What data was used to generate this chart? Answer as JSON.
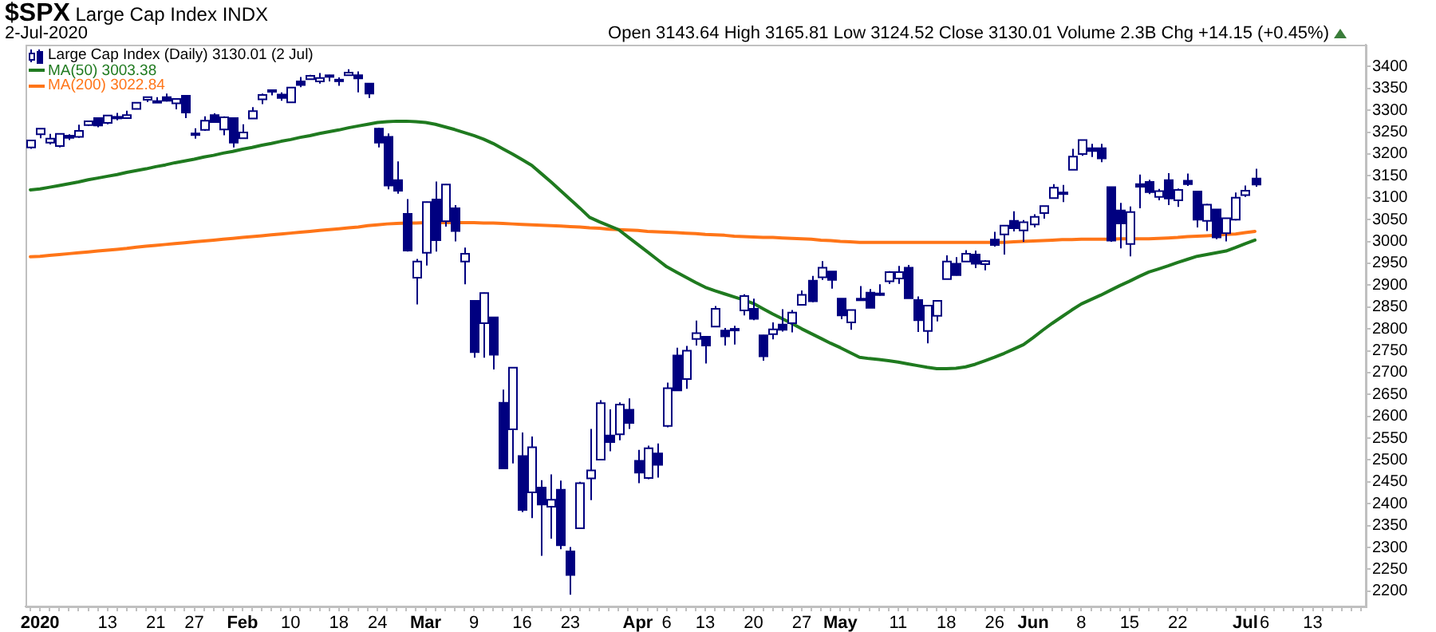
{
  "chart_data": {
    "type": "candlestick",
    "title": "$SPX Large Cap Index INDX",
    "subtitle": "2-Jul-2020",
    "annotations": [
      "Open 3143.64 High 3165.81 Low 3124.52 Close 3130.01 Volume 2.3B Chg +14.15 (+0.45%)"
    ],
    "categories": [
      null,
      "2020",
      null,
      null,
      null,
      null,
      null,
      null,
      "13",
      null,
      null,
      null,
      null,
      "21",
      null,
      null,
      null,
      "27",
      null,
      null,
      null,
      null,
      "Feb",
      null,
      null,
      null,
      null,
      "10",
      null,
      null,
      null,
      null,
      "18",
      null,
      null,
      null,
      "24",
      null,
      null,
      null,
      null,
      "Mar",
      null,
      null,
      null,
      null,
      "9",
      null,
      null,
      null,
      null,
      "16",
      null,
      null,
      null,
      null,
      "23",
      null,
      null,
      null,
      null,
      null,
      null,
      "Apr",
      null,
      null,
      "6",
      null,
      null,
      null,
      "13",
      null,
      null,
      null,
      null,
      "20",
      null,
      null,
      null,
      null,
      "27",
      null,
      null,
      null,
      "May",
      null,
      null,
      null,
      null,
      null,
      "11",
      null,
      null,
      null,
      null,
      "18",
      null,
      null,
      null,
      null,
      "26",
      null,
      null,
      null,
      "Jun",
      null,
      null,
      null,
      null,
      "8",
      null,
      null,
      null,
      null,
      "15",
      null,
      null,
      null,
      null,
      "22",
      null,
      null,
      null,
      null,
      null,
      null,
      "Jul",
      null,
      "6",
      null,
      null,
      null,
      null,
      "13",
      null,
      null,
      null,
      null,
      null
    ],
    "ylim": [
      2165,
      3450
    ],
    "yticks": [
      2200,
      2250,
      2300,
      2350,
      2400,
      2450,
      2500,
      2550,
      2600,
      2650,
      2700,
      2750,
      2800,
      2850,
      2900,
      2950,
      3000,
      3050,
      3100,
      3150,
      3200,
      3250,
      3300,
      3350,
      3400
    ],
    "grid": false,
    "legend": "top left",
    "marker": "none",
    "line_style": "solid",
    "series": [
      {
        "type": "line",
        "name": "MA(50) 3003.38",
        "color": "#1f7a1f",
        "values": [
          3118,
          3120,
          3124,
          3128,
          3132,
          3136,
          3141,
          3145,
          3149,
          3153,
          3158,
          3162,
          3166,
          3171,
          3175,
          3180,
          3184,
          3188,
          3193,
          3197,
          3202,
          3206,
          3211,
          3215,
          3220,
          3224,
          3229,
          3233,
          3238,
          3242,
          3247,
          3251,
          3255,
          3260,
          3264,
          3268,
          3272,
          3274,
          3275,
          3275,
          3274,
          3272,
          3268,
          3262,
          3256,
          3249,
          3242,
          3234,
          3224,
          3212,
          3200,
          3187,
          3174,
          3155,
          3136,
          3116,
          3096,
          3076,
          3055,
          3045,
          3036,
          3027,
          3010,
          2993,
          2976,
          2959,
          2942,
          2930,
          2918,
          2906,
          2895,
          2887,
          2880,
          2873,
          2866,
          2858,
          2846,
          2834,
          2823,
          2812,
          2800,
          2789,
          2778,
          2767,
          2757,
          2746,
          2735,
          2732,
          2730,
          2727,
          2724,
          2720,
          2716,
          2712,
          2709,
          2709,
          2710,
          2713,
          2719,
          2727,
          2735,
          2744,
          2754,
          2764,
          2780,
          2797,
          2813,
          2828,
          2843,
          2857,
          2867,
          2877,
          2888,
          2899,
          2909,
          2920,
          2930,
          2937,
          2944,
          2952,
          2959,
          2966,
          2970,
          2974,
          2978,
          2986,
          2995,
          3003,
          null,
          null,
          null,
          null,
          null,
          null,
          null,
          null,
          null,
          null,
          null
        ]
      },
      {
        "type": "line",
        "name": "MA(200) 3022.84",
        "color": "#ff7518",
        "values": [
          2965,
          2966,
          2968,
          2970,
          2972,
          2974,
          2976,
          2978,
          2980,
          2982,
          2984,
          2987,
          2989,
          2991,
          2993,
          2995,
          2997,
          2999,
          3001,
          3003,
          3005,
          3007,
          3009,
          3011,
          3013,
          3015,
          3017,
          3019,
          3021,
          3023,
          3025,
          3027,
          3029,
          3031,
          3033,
          3036,
          3038,
          3040,
          3041,
          3042,
          3042,
          3043,
          3043,
          3043,
          3043,
          3043,
          3043,
          3042,
          3042,
          3041,
          3040,
          3039,
          3038,
          3037,
          3036,
          3035,
          3034,
          3033,
          3031,
          3030,
          3028,
          3027,
          3026,
          3025,
          3023,
          3022,
          3021,
          3020,
          3019,
          3018,
          3016,
          3015,
          3014,
          3012,
          3011,
          3010,
          3009,
          3009,
          3008,
          3007,
          3006,
          3005,
          3003,
          3002,
          3000,
          2999,
          2998,
          2998,
          2998,
          2998,
          2998,
          2998,
          2998,
          2998,
          2998,
          2998,
          2998,
          2998,
          2998,
          2998,
          2998,
          2998,
          2999,
          3000,
          3001,
          3002,
          3003,
          3004,
          3004,
          3005,
          3005,
          3005,
          3005,
          3006,
          3006,
          3006,
          3006,
          3007,
          3008,
          3009,
          3011,
          3012,
          3013,
          3014,
          3016,
          3017,
          3020,
          3023,
          null,
          null,
          null,
          null,
          null,
          null,
          null,
          null,
          null,
          null,
          null
        ]
      },
      {
        "name": "Large Cap Index (Daily) 3130.01 (2 Jul)",
        "color": "#000080",
        "ohlc": [
          [
            3215,
            3232,
            3212,
            3231
          ],
          [
            3245,
            3258,
            3236,
            3258
          ],
          [
            3226,
            3246,
            3222,
            3235
          ],
          [
            3218,
            3247,
            3215,
            3246
          ],
          [
            3242,
            3245,
            3232,
            3237
          ],
          [
            3239,
            3267,
            3237,
            3253
          ],
          [
            3266,
            3276,
            3264,
            3275
          ],
          [
            3282,
            3283,
            3261,
            3265
          ],
          [
            3271,
            3288,
            3268,
            3288
          ],
          [
            3285,
            3294,
            3277,
            3283
          ],
          [
            3282,
            3299,
            3281,
            3289
          ],
          [
            3303,
            3317,
            3303,
            3317
          ],
          [
            3324,
            3330,
            3319,
            3330
          ],
          [
            3321,
            3330,
            3317,
            3321
          ],
          [
            3330,
            3338,
            3320,
            3322
          ],
          [
            3316,
            3327,
            3302,
            3326
          ],
          [
            3333,
            3333,
            3282,
            3295
          ],
          [
            3247,
            3259,
            3235,
            3244
          ],
          [
            3255,
            3286,
            3253,
            3276
          ],
          [
            3289,
            3293,
            3272,
            3273
          ],
          [
            3256,
            3286,
            3243,
            3284
          ],
          [
            3282,
            3282,
            3215,
            3226
          ],
          [
            3236,
            3268,
            3236,
            3249
          ],
          [
            3281,
            3307,
            3281,
            3298
          ],
          [
            3325,
            3338,
            3314,
            3335
          ],
          [
            3345,
            3348,
            3334,
            3346
          ],
          [
            3336,
            3341,
            3322,
            3328
          ],
          [
            3318,
            3352,
            3318,
            3352
          ],
          [
            3366,
            3376,
            3353,
            3358
          ],
          [
            3371,
            3381,
            3370,
            3379
          ],
          [
            3366,
            3385,
            3361,
            3374
          ],
          [
            3378,
            3381,
            3366,
            3380
          ],
          [
            3369,
            3375,
            3356,
            3370
          ],
          [
            3380,
            3394,
            3379,
            3386
          ],
          [
            3380,
            3389,
            3341,
            3373
          ],
          [
            3361,
            3361,
            3328,
            3338
          ],
          [
            3258,
            3260,
            3215,
            3226
          ],
          [
            3239,
            3247,
            3119,
            3128
          ],
          [
            3140,
            3183,
            3109,
            3116
          ],
          [
            3063,
            3097,
            2977,
            2979
          ],
          [
            2917,
            2960,
            2856,
            2954
          ],
          [
            2974,
            3091,
            2945,
            3090
          ],
          [
            3096,
            3137,
            2977,
            3003
          ],
          [
            3046,
            3131,
            3034,
            3130
          ],
          [
            3076,
            3083,
            3000,
            3024
          ],
          [
            2954,
            2986,
            2902,
            2972
          ],
          [
            2864,
            2864,
            2734,
            2747
          ],
          [
            2813,
            2883,
            2734,
            2882
          ],
          [
            2826,
            2826,
            2707,
            2741
          ],
          [
            2631,
            2661,
            2479,
            2481
          ],
          [
            2570,
            2711,
            2492,
            2711
          ],
          [
            2509,
            2563,
            2381,
            2386
          ],
          [
            2426,
            2554,
            2367,
            2529
          ],
          [
            2437,
            2454,
            2281,
            2398
          ],
          [
            2393,
            2467,
            2320,
            2409
          ],
          [
            2432,
            2453,
            2296,
            2305
          ],
          [
            2291,
            2301,
            2192,
            2237
          ],
          [
            2344,
            2450,
            2344,
            2447
          ],
          [
            2458,
            2571,
            2408,
            2476
          ],
          [
            2501,
            2637,
            2501,
            2630
          ],
          [
            2556,
            2616,
            2520,
            2541
          ],
          [
            2559,
            2632,
            2545,
            2627
          ],
          [
            2615,
            2641,
            2571,
            2585
          ],
          [
            2498,
            2523,
            2447,
            2471
          ],
          [
            2459,
            2533,
            2456,
            2527
          ],
          [
            2515,
            2538,
            2460,
            2489
          ],
          [
            2578,
            2677,
            2575,
            2664
          ],
          [
            2739,
            2757,
            2658,
            2659
          ],
          [
            2685,
            2761,
            2663,
            2750
          ],
          [
            2777,
            2819,
            2762,
            2790
          ],
          [
            2782,
            2782,
            2721,
            2762
          ],
          [
            2805,
            2852,
            2805,
            2846
          ],
          [
            2796,
            2802,
            2762,
            2783
          ],
          [
            2799,
            2807,
            2764,
            2800
          ],
          [
            2842,
            2879,
            2831,
            2875
          ],
          [
            2846,
            2869,
            2820,
            2823
          ],
          [
            2785,
            2786,
            2727,
            2737
          ],
          [
            2788,
            2815,
            2776,
            2799
          ],
          [
            2810,
            2845,
            2794,
            2798
          ],
          [
            2813,
            2843,
            2792,
            2837
          ],
          [
            2855,
            2888,
            2853,
            2878
          ],
          [
            2910,
            2921,
            2861,
            2863
          ],
          [
            2918,
            2955,
            2912,
            2940
          ],
          [
            2931,
            2931,
            2892,
            2912
          ],
          [
            2869,
            2869,
            2822,
            2831
          ],
          [
            2815,
            2844,
            2798,
            2843
          ],
          [
            2869,
            2898,
            2864,
            2868
          ],
          [
            2883,
            2891,
            2848,
            2848
          ],
          [
            2878,
            2902,
            2876,
            2881
          ],
          [
            2909,
            2932,
            2903,
            2930
          ],
          [
            2915,
            2944,
            2903,
            2930
          ],
          [
            2940,
            2946,
            2870,
            2870
          ],
          [
            2866,
            2874,
            2793,
            2820
          ],
          [
            2795,
            2853,
            2767,
            2853
          ],
          [
            2830,
            2865,
            2817,
            2864
          ],
          [
            2914,
            2968,
            2914,
            2954
          ],
          [
            2949,
            2964,
            2922,
            2923
          ],
          [
            2954,
            2980,
            2954,
            2972
          ],
          [
            2970,
            2979,
            2939,
            2949
          ],
          [
            2948,
            2957,
            2934,
            2955
          ],
          [
            3004,
            3022,
            2988,
            2992
          ],
          [
            3016,
            3036,
            2970,
            3036
          ],
          [
            3047,
            3069,
            3023,
            3030
          ],
          [
            3025,
            3049,
            2999,
            3044
          ],
          [
            3039,
            3062,
            3032,
            3056
          ],
          [
            3065,
            3081,
            3052,
            3081
          ],
          [
            3099,
            3131,
            3099,
            3123
          ],
          [
            3112,
            3129,
            3090,
            3112
          ],
          [
            3164,
            3212,
            3164,
            3194
          ],
          [
            3200,
            3233,
            3196,
            3232
          ],
          [
            3213,
            3223,
            3193,
            3207
          ],
          [
            3213,
            3223,
            3181,
            3190
          ],
          [
            3124,
            3124,
            2999,
            3002
          ],
          [
            3071,
            3088,
            2984,
            3041
          ],
          [
            2994,
            3080,
            2966,
            3067
          ],
          [
            3131,
            3153,
            3076,
            3125
          ],
          [
            3136,
            3141,
            3108,
            3113
          ],
          [
            3102,
            3120,
            3094,
            3115
          ],
          [
            3140,
            3156,
            3083,
            3098
          ],
          [
            3094,
            3121,
            3079,
            3118
          ],
          [
            3139,
            3155,
            3127,
            3131
          ],
          [
            3114,
            3115,
            3032,
            3050
          ],
          [
            3047,
            3086,
            3024,
            3084
          ],
          [
            3073,
            3074,
            3005,
            3009
          ],
          [
            3019,
            3054,
            3000,
            3053
          ],
          [
            3050,
            3112,
            3048,
            3100
          ],
          [
            3106,
            3128,
            3102,
            3116
          ],
          [
            3144,
            3166,
            3125,
            3130
          ],
          null,
          null,
          null,
          null,
          null,
          null,
          null,
          null,
          null,
          null,
          null
        ]
      }
    ]
  }
}
